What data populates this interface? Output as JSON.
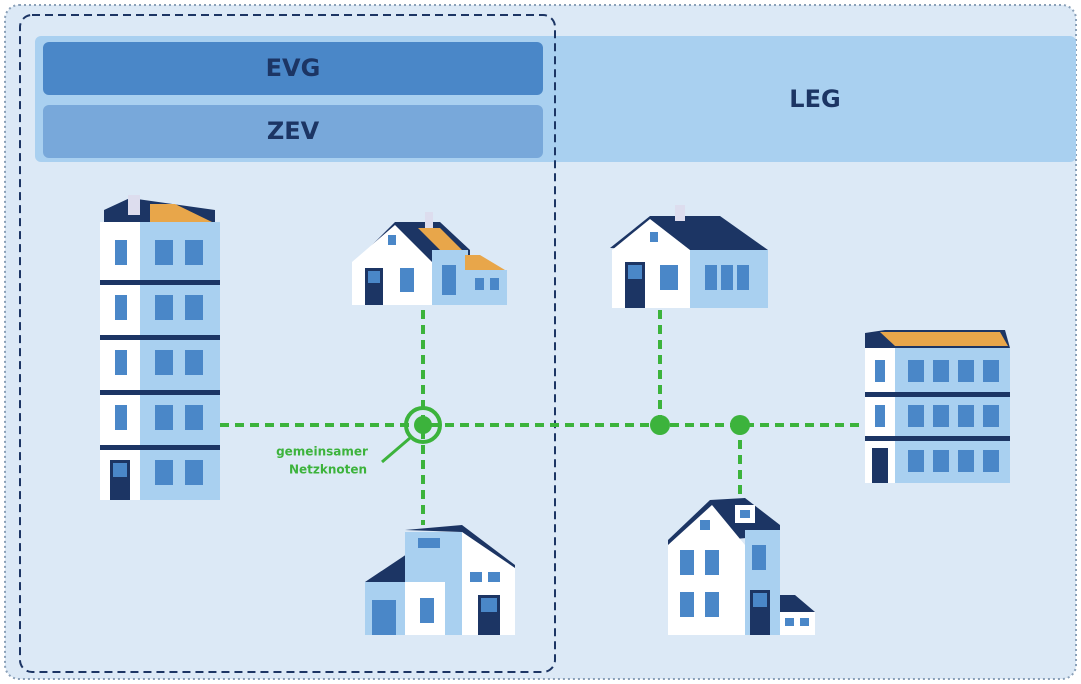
{
  "regions": {
    "evg": "EVG",
    "zev": "ZEV",
    "leg": "LEG"
  },
  "node_label": [
    "gemeinsamer",
    "Netzknoten"
  ]
}
